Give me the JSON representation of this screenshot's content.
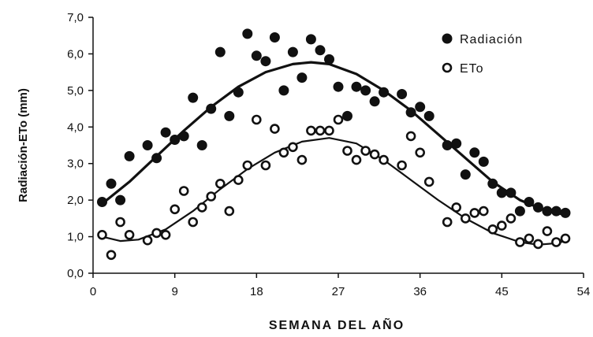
{
  "chart_data": {
    "type": "scatter",
    "xlabel": "SEMANA DEL AÑO",
    "ylabel": "Radiación-ETo (mm)",
    "xlim": [
      0,
      54
    ],
    "ylim": [
      0,
      7
    ],
    "x_ticks": [
      "0",
      "9",
      "18",
      "27",
      "36",
      "45",
      "54"
    ],
    "y_ticks": [
      "0,0",
      "1,0",
      "2,0",
      "3,0",
      "4,0",
      "5,0",
      "6,0",
      "7,0"
    ],
    "grid": false,
    "legend_position": "top-right",
    "series": [
      {
        "name": "Radiación",
        "marker": "filled-circle",
        "color": "#111111",
        "points": [
          [
            1,
            1.95
          ],
          [
            2,
            2.45
          ],
          [
            3,
            2.0
          ],
          [
            4,
            3.2
          ],
          [
            6,
            3.5
          ],
          [
            7,
            3.15
          ],
          [
            8,
            3.85
          ],
          [
            9,
            3.65
          ],
          [
            10,
            3.75
          ],
          [
            11,
            4.8
          ],
          [
            12,
            3.5
          ],
          [
            13,
            4.5
          ],
          [
            14,
            6.05
          ],
          [
            15,
            4.3
          ],
          [
            16,
            4.95
          ],
          [
            17,
            6.55
          ],
          [
            18,
            5.95
          ],
          [
            19,
            5.8
          ],
          [
            20,
            6.45
          ],
          [
            21,
            5.0
          ],
          [
            22,
            6.05
          ],
          [
            23,
            5.35
          ],
          [
            24,
            6.4
          ],
          [
            25,
            6.1
          ],
          [
            26,
            5.85
          ],
          [
            27,
            5.1
          ],
          [
            28,
            4.3
          ],
          [
            29,
            5.1
          ],
          [
            30,
            5.0
          ],
          [
            31,
            4.7
          ],
          [
            32,
            4.95
          ],
          [
            34,
            4.9
          ],
          [
            35,
            4.4
          ],
          [
            36,
            4.55
          ],
          [
            37,
            4.3
          ],
          [
            39,
            3.5
          ],
          [
            40,
            3.55
          ],
          [
            41,
            2.7
          ],
          [
            42,
            3.3
          ],
          [
            43,
            3.05
          ],
          [
            44,
            2.45
          ],
          [
            45,
            2.2
          ],
          [
            46,
            2.2
          ],
          [
            47,
            1.7
          ],
          [
            48,
            1.95
          ],
          [
            49,
            1.8
          ],
          [
            50,
            1.7
          ],
          [
            51,
            1.7
          ],
          [
            52,
            1.65
          ]
        ],
        "trend": [
          [
            1,
            1.9
          ],
          [
            4,
            2.5
          ],
          [
            7,
            3.2
          ],
          [
            10,
            3.9
          ],
          [
            13,
            4.55
          ],
          [
            16,
            5.1
          ],
          [
            19,
            5.5
          ],
          [
            22,
            5.72
          ],
          [
            24,
            5.77
          ],
          [
            26,
            5.72
          ],
          [
            29,
            5.45
          ],
          [
            32,
            5.0
          ],
          [
            35,
            4.45
          ],
          [
            38,
            3.8
          ],
          [
            41,
            3.15
          ],
          [
            44,
            2.5
          ],
          [
            47,
            2.0
          ],
          [
            50,
            1.7
          ],
          [
            52,
            1.6
          ]
        ]
      },
      {
        "name": "ETo",
        "marker": "open-circle",
        "color": "#111111",
        "points": [
          [
            1,
            1.05
          ],
          [
            2,
            0.5
          ],
          [
            3,
            1.4
          ],
          [
            4,
            1.05
          ],
          [
            6,
            0.9
          ],
          [
            7,
            1.1
          ],
          [
            8,
            1.05
          ],
          [
            9,
            1.75
          ],
          [
            10,
            2.25
          ],
          [
            11,
            1.4
          ],
          [
            12,
            1.8
          ],
          [
            13,
            2.1
          ],
          [
            14,
            2.45
          ],
          [
            15,
            1.7
          ],
          [
            16,
            2.55
          ],
          [
            17,
            2.95
          ],
          [
            18,
            4.2
          ],
          [
            19,
            2.95
          ],
          [
            20,
            3.95
          ],
          [
            21,
            3.3
          ],
          [
            22,
            3.45
          ],
          [
            23,
            3.1
          ],
          [
            24,
            3.9
          ],
          [
            25,
            3.9
          ],
          [
            26,
            3.9
          ],
          [
            27,
            4.2
          ],
          [
            28,
            3.35
          ],
          [
            29,
            3.1
          ],
          [
            30,
            3.35
          ],
          [
            31,
            3.25
          ],
          [
            32,
            3.1
          ],
          [
            34,
            2.95
          ],
          [
            35,
            3.75
          ],
          [
            36,
            3.3
          ],
          [
            37,
            2.5
          ],
          [
            39,
            1.4
          ],
          [
            40,
            1.8
          ],
          [
            41,
            1.5
          ],
          [
            42,
            1.65
          ],
          [
            43,
            1.7
          ],
          [
            44,
            1.2
          ],
          [
            45,
            1.3
          ],
          [
            46,
            1.5
          ],
          [
            47,
            0.85
          ],
          [
            48,
            0.95
          ],
          [
            49,
            0.8
          ],
          [
            50,
            1.15
          ],
          [
            51,
            0.85
          ],
          [
            52,
            0.95
          ]
        ],
        "trend": [
          [
            1,
            1.0
          ],
          [
            3,
            0.88
          ],
          [
            5,
            0.92
          ],
          [
            8,
            1.2
          ],
          [
            11,
            1.7
          ],
          [
            14,
            2.3
          ],
          [
            17,
            2.85
          ],
          [
            20,
            3.3
          ],
          [
            23,
            3.6
          ],
          [
            26,
            3.7
          ],
          [
            29,
            3.55
          ],
          [
            32,
            3.1
          ],
          [
            35,
            2.55
          ],
          [
            38,
            2.0
          ],
          [
            41,
            1.5
          ],
          [
            44,
            1.1
          ],
          [
            47,
            0.85
          ],
          [
            49,
            0.78
          ],
          [
            51,
            0.82
          ],
          [
            52,
            0.88
          ]
        ]
      }
    ]
  }
}
